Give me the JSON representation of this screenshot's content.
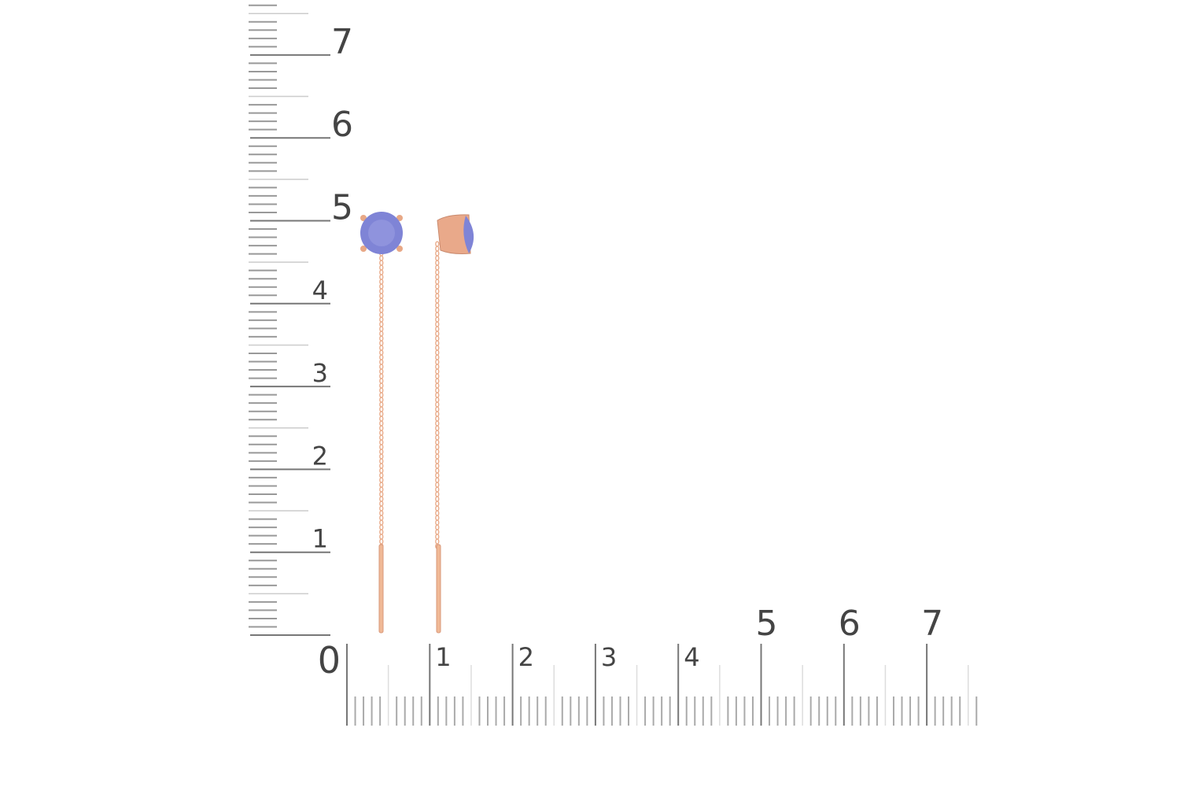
{
  "rulers": {
    "unit": "cm",
    "vertical_labels": [
      "1",
      "2",
      "3",
      "4",
      "5",
      "6",
      "7"
    ],
    "horizontal_labels": [
      "0",
      "1",
      "2",
      "3",
      "4",
      "5",
      "6",
      "7"
    ],
    "tick_color": "#888888",
    "label_color": "#444444"
  },
  "product": {
    "type": "threader earrings",
    "metal_color": "#e8a886",
    "stone_color": "#7f84d6",
    "pieces": 2
  }
}
